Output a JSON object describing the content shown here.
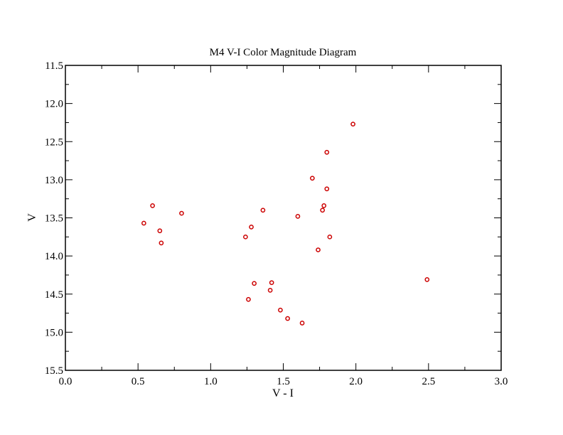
{
  "chart_data": {
    "type": "scatter",
    "title": "M4 V-I Color Magnitude Diagram",
    "xlabel": "V - I",
    "ylabel": "V",
    "xlim": [
      0.0,
      3.0
    ],
    "ylim": [
      11.5,
      15.5
    ],
    "y_inverted": true,
    "grid": false,
    "legend": "none",
    "x_ticks": [
      0.0,
      0.5,
      1.0,
      1.5,
      2.0,
      2.5,
      3.0
    ],
    "x_tick_labels": [
      "0.0",
      "0.5",
      "1.0",
      "1.5",
      "2.0",
      "2.5",
      "3.0"
    ],
    "y_ticks": [
      11.5,
      12.0,
      12.5,
      13.0,
      13.5,
      14.0,
      14.5,
      15.0,
      15.5
    ],
    "y_tick_labels": [
      "11.5",
      "12.0",
      "12.5",
      "13.0",
      "13.5",
      "14.0",
      "14.5",
      "15.0",
      "15.5"
    ],
    "marker_color": "#cc0000",
    "series": [
      {
        "points": [
          {
            "x": 0.54,
            "y": 13.57
          },
          {
            "x": 0.6,
            "y": 13.34
          },
          {
            "x": 0.65,
            "y": 13.67
          },
          {
            "x": 0.66,
            "y": 13.83
          },
          {
            "x": 0.8,
            "y": 13.44
          },
          {
            "x": 1.24,
            "y": 13.75
          },
          {
            "x": 1.28,
            "y": 13.62
          },
          {
            "x": 1.36,
            "y": 13.4
          },
          {
            "x": 1.26,
            "y": 14.57
          },
          {
            "x": 1.3,
            "y": 14.36
          },
          {
            "x": 1.41,
            "y": 14.45
          },
          {
            "x": 1.42,
            "y": 14.35
          },
          {
            "x": 1.48,
            "y": 14.71
          },
          {
            "x": 1.53,
            "y": 14.82
          },
          {
            "x": 1.6,
            "y": 13.48
          },
          {
            "x": 1.63,
            "y": 14.88
          },
          {
            "x": 1.7,
            "y": 12.98
          },
          {
            "x": 1.74,
            "y": 13.92
          },
          {
            "x": 1.77,
            "y": 13.4
          },
          {
            "x": 1.78,
            "y": 13.34
          },
          {
            "x": 1.8,
            "y": 13.12
          },
          {
            "x": 1.8,
            "y": 12.64
          },
          {
            "x": 1.82,
            "y": 13.75
          },
          {
            "x": 1.98,
            "y": 12.27
          },
          {
            "x": 2.49,
            "y": 14.31
          }
        ]
      }
    ]
  }
}
